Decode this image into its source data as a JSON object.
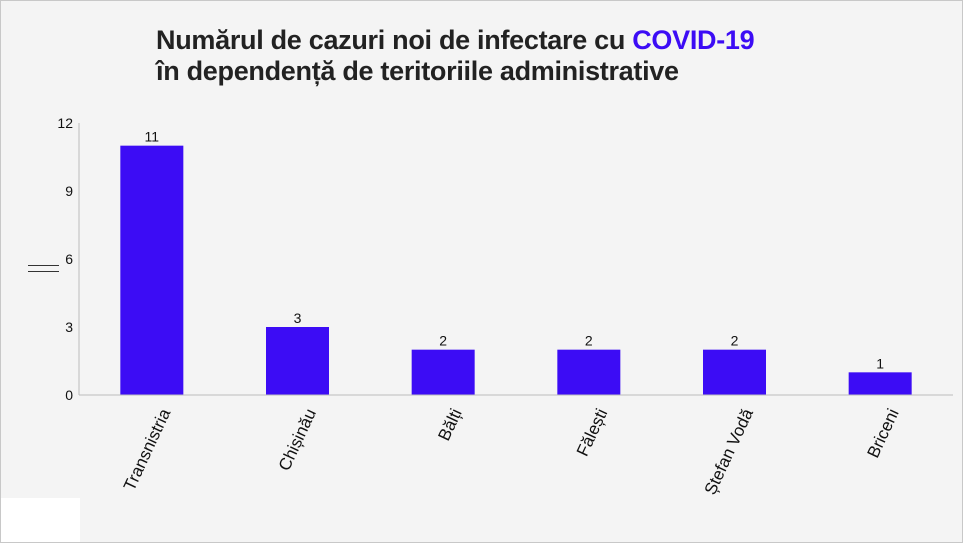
{
  "title": {
    "line1_prefix": "Numărul de cazuri noi de infectare cu ",
    "line1_accent": "COVID-19",
    "line2": "în dependență de teritoriile administrative"
  },
  "colors": {
    "bar": "#3c0cf5",
    "accent_text": "#3c0cf5",
    "title": "#222222",
    "background": "#f4f4f4"
  },
  "chart_data": {
    "type": "bar",
    "categories": [
      "Transnistria",
      "Chișinău",
      "Bălți",
      "Fălești",
      "Ștefan Vodă",
      "Briceni"
    ],
    "values": [
      11,
      3,
      2,
      2,
      2,
      1
    ],
    "data_labels": [
      "11",
      "3",
      "2",
      "2",
      "2",
      "1"
    ],
    "ylim": [
      0,
      12
    ],
    "yticks": [
      0,
      3,
      6,
      9,
      12
    ],
    "xlabel": "",
    "ylabel": "",
    "grid": false,
    "legend": "none"
  }
}
